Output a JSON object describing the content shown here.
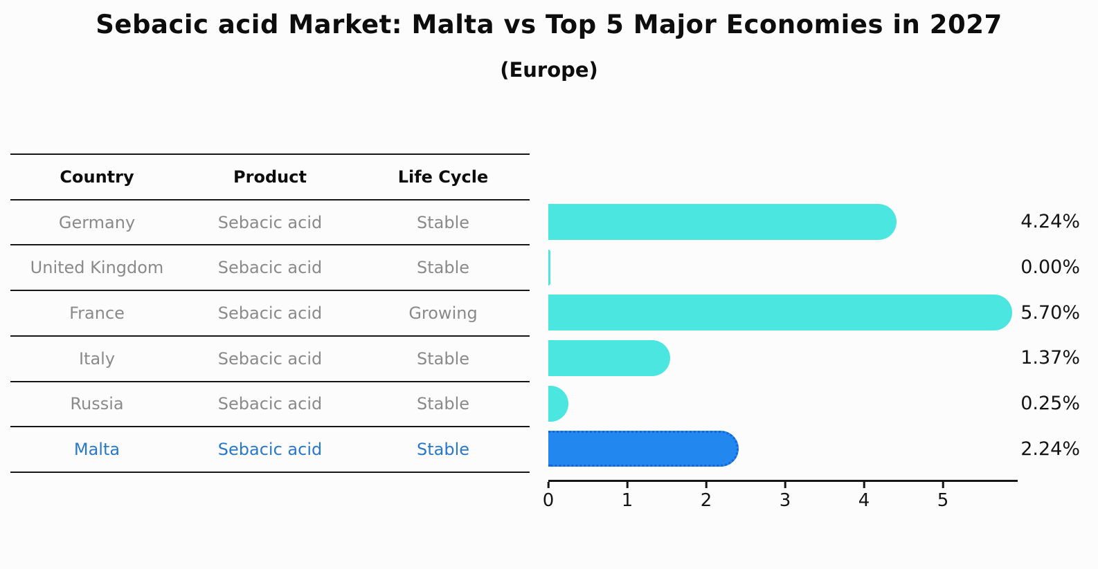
{
  "chart_data": {
    "type": "bar",
    "orientation": "horizontal",
    "title": "Sebacic acid Market: Malta vs Top 5 Major Economies in 2027",
    "subtitle": "(Europe)",
    "categories": [
      "Germany",
      "United Kingdom",
      "France",
      "Italy",
      "Russia",
      "Malta"
    ],
    "values": [
      4.24,
      0.0,
      5.7,
      1.37,
      0.25,
      2.24
    ],
    "value_labels": [
      "4.24%",
      "0.00%",
      "5.70%",
      "1.37%",
      "0.25%",
      "2.24%"
    ],
    "xticks": [
      0,
      1,
      2,
      3,
      4,
      5
    ],
    "xlim": [
      0,
      5.95
    ],
    "grid": false,
    "legend_position": "none",
    "bar_color": "#4be6e0",
    "highlight_color": "#2287ee",
    "highlight_border": "#1463d8",
    "highlight_index": 5
  },
  "table": {
    "headers": [
      "Country",
      "Product",
      "Life Cycle"
    ],
    "rows": [
      {
        "country": "Germany",
        "product": "Sebacic acid",
        "life_cycle": "Stable",
        "highlight": false
      },
      {
        "country": "United Kingdom",
        "product": "Sebacic acid",
        "life_cycle": "Stable",
        "highlight": false
      },
      {
        "country": "France",
        "product": "Sebacic acid",
        "life_cycle": "Growing",
        "highlight": false
      },
      {
        "country": "Italy",
        "product": "Sebacic acid",
        "life_cycle": "Stable",
        "highlight": false
      },
      {
        "country": "Russia",
        "product": "Sebacic acid",
        "life_cycle": "Stable",
        "highlight": false
      },
      {
        "country": "Malta",
        "product": "Sebacic acid",
        "life_cycle": "Stable",
        "highlight": true
      }
    ]
  },
  "colors": {
    "blue_text": "#2878cb",
    "gray_text": "#8a8a8a",
    "axis_color": "#141414"
  }
}
